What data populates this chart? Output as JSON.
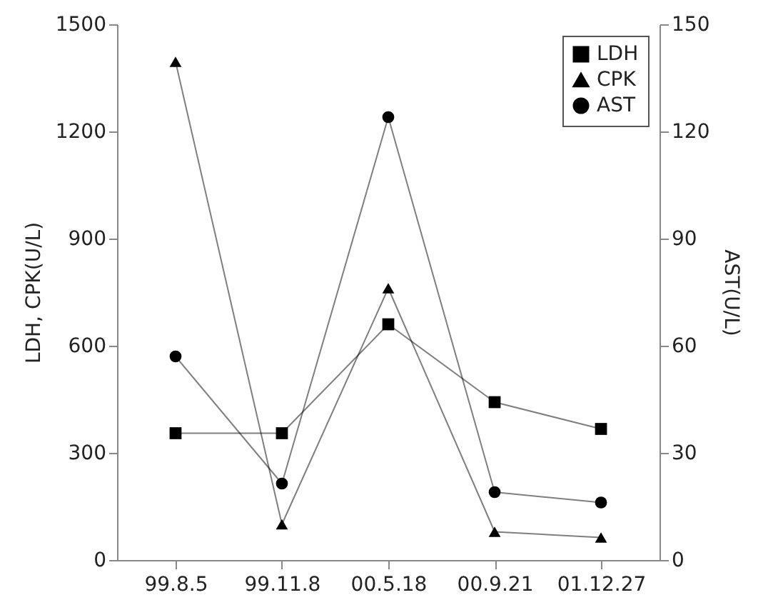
{
  "chart_data": {
    "type": "line",
    "ylabel": "LDH, CPK(U/L)",
    "y2label": "AST(U/L)",
    "categories": [
      "99.8.5",
      "99.11.8",
      "00.5.18",
      "00.9.21",
      "01.12.27"
    ],
    "series": [
      {
        "name": "LDH",
        "color": "#000000",
        "marker": "square",
        "values": [
          355,
          355,
          660,
          442,
          367
        ]
      },
      {
        "name": "CPK",
        "color": "#000000",
        "marker": "triangle",
        "values": [
          1395,
          100,
          761,
          79,
          63
        ]
      },
      {
        "name": "AST",
        "color": "#000000",
        "marker": "circle",
        "axis": "y2",
        "values": [
          57,
          21.4,
          124,
          19,
          16.1
        ]
      }
    ],
    "ylim": [
      0,
      1500
    ],
    "yticks": [
      0,
      300,
      600,
      900,
      1200,
      1500
    ],
    "y2lim": [
      0,
      150
    ],
    "y2ticks": [
      0,
      30,
      60,
      90,
      120,
      150
    ],
    "legend": "top right",
    "grid": false
  }
}
